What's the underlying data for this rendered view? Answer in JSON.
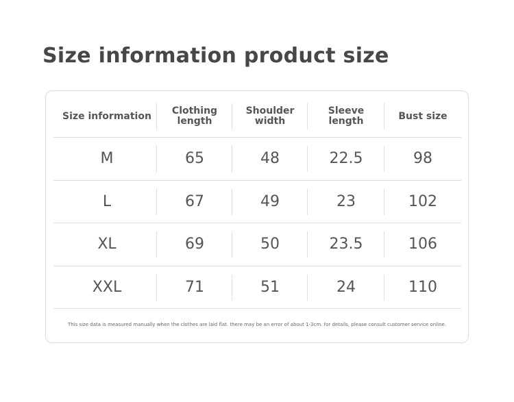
{
  "header": {
    "title": "Size information product size"
  },
  "table": {
    "columns": [
      "Size information",
      "Clothing length",
      "Shoulder width",
      "Sleeve length",
      "Bust size"
    ],
    "rows": [
      [
        "M",
        65,
        48,
        22.5,
        98
      ],
      [
        "L",
        67,
        49,
        23,
        102
      ],
      [
        "XL",
        69,
        50,
        23.5,
        106
      ],
      [
        "XXL",
        71,
        51,
        24,
        110
      ]
    ]
  },
  "footnote": "This size data is measured manually when the clothes are laid flat. there may be an error of about 1-3cm. for details, please consult customer service online."
}
